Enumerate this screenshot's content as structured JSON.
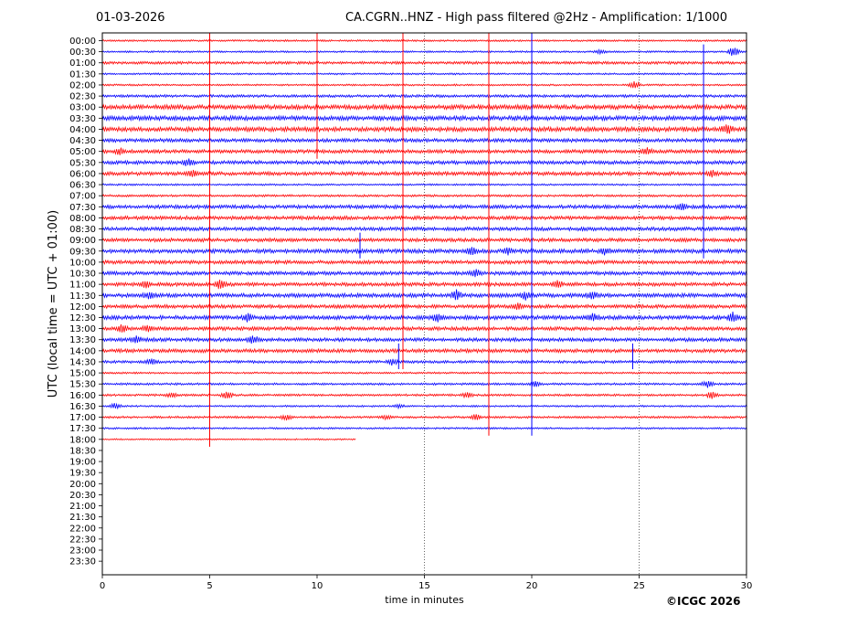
{
  "header": {
    "date": "01-03-2026",
    "title": "CA.CGRN..HNZ - High pass filtered @2Hz - Amplification: 1/1000"
  },
  "footer": {
    "credit": "©ICGC 2026"
  },
  "colors": {
    "trace_red": "#ff0000",
    "trace_blue": "#0000ff",
    "axis": "#000000"
  },
  "chart_data": {
    "type": "line",
    "xlabel": "time in minutes",
    "ylabel": "UTC (local time = UTC + 01:00)",
    "xlim": [
      0,
      30
    ],
    "xticks": [
      "0",
      "5",
      "10",
      "15",
      "20",
      "25",
      "30"
    ],
    "dotted_gridlines_x": [
      15,
      25
    ],
    "rows": [
      "00:00",
      "00:30",
      "01:00",
      "01:30",
      "02:00",
      "02:30",
      "03:00",
      "03:30",
      "04:00",
      "04:30",
      "05:00",
      "05:30",
      "06:00",
      "06:30",
      "07:00",
      "07:30",
      "08:00",
      "08:30",
      "09:00",
      "09:30",
      "10:00",
      "10:30",
      "11:00",
      "11:30",
      "12:00",
      "12:30",
      "13:00",
      "13:30",
      "14:00",
      "14:30",
      "15:00",
      "15:30",
      "16:00",
      "16:30",
      "17:00",
      "17:30",
      "18:00",
      "18:30",
      "19:00",
      "19:30",
      "20:00",
      "20:30",
      "21:00",
      "21:30",
      "22:00",
      "22:30",
      "23:00",
      "23:30"
    ],
    "trace_colors": [
      "red",
      "blue"
    ],
    "recorded_rows": 37,
    "last_row_end_minute": 11.8,
    "trace_style": [
      {
        "row": "00:00",
        "base": 1
      },
      {
        "row": "00:30",
        "base": 1
      },
      {
        "row": "01:00",
        "base": 1.5
      },
      {
        "row": "01:30",
        "base": 1
      },
      {
        "row": "02:00",
        "base": 1
      },
      {
        "row": "02:30",
        "base": 1.5
      },
      {
        "row": "03:00",
        "base": 2.5
      },
      {
        "row": "03:30",
        "base": 2.5
      },
      {
        "row": "04:00",
        "base": 2.5
      },
      {
        "row": "04:30",
        "base": 2
      },
      {
        "row": "05:00",
        "base": 2
      },
      {
        "row": "05:30",
        "base": 2
      },
      {
        "row": "06:00",
        "base": 2
      },
      {
        "row": "06:30",
        "base": 1
      },
      {
        "row": "07:00",
        "base": 1.2
      },
      {
        "row": "07:30",
        "base": 2
      },
      {
        "row": "08:00",
        "base": 2
      },
      {
        "row": "08:30",
        "base": 2
      },
      {
        "row": "09:00",
        "base": 2
      },
      {
        "row": "09:30",
        "base": 2.2
      },
      {
        "row": "10:00",
        "base": 2
      },
      {
        "row": "10:30",
        "base": 2
      },
      {
        "row": "11:00",
        "base": 2
      },
      {
        "row": "11:30",
        "base": 2.2
      },
      {
        "row": "12:00",
        "base": 2
      },
      {
        "row": "12:30",
        "base": 2.2
      },
      {
        "row": "13:00",
        "base": 2
      },
      {
        "row": "13:30",
        "base": 2
      },
      {
        "row": "14:00",
        "base": 2
      },
      {
        "row": "14:30",
        "base": 1.5
      },
      {
        "row": "15:00",
        "base": 1
      },
      {
        "row": "15:30",
        "base": 1.2
      },
      {
        "row": "16:00",
        "base": 1.2
      },
      {
        "row": "16:30",
        "base": 1
      },
      {
        "row": "17:00",
        "base": 1.2
      },
      {
        "row": "17:30",
        "base": 1
      },
      {
        "row": "18:00",
        "base": 0.8
      }
    ],
    "spikes": [
      {
        "x": 5.0,
        "row_from": "00:00",
        "row_to": "18:00",
        "color": "red"
      },
      {
        "x": 10.0,
        "row_from": "00:00",
        "row_to": "05:00",
        "color": "red"
      },
      {
        "x": 14.0,
        "row_from": "00:00",
        "row_to": "14:30",
        "color": "red"
      },
      {
        "x": 18.0,
        "row_from": "00:00",
        "row_to": "17:30",
        "color": "red"
      },
      {
        "x": 20.0,
        "row_from": "00:00",
        "row_to": "17:30",
        "color": "blue"
      },
      {
        "x": 28.0,
        "row_from": "00:30",
        "row_to": "09:30",
        "color": "blue"
      },
      {
        "x": 12.0,
        "row_from": "09:00",
        "row_to": "09:30",
        "color": "blue"
      },
      {
        "x": 24.7,
        "row_from": "14:00",
        "row_to": "14:30",
        "color": "blue"
      },
      {
        "x": 13.8,
        "row_from": "14:00",
        "row_to": "14:30",
        "color": "blue"
      }
    ],
    "bursts": [
      {
        "row": "00:30",
        "x": 29.4,
        "amp": 5
      },
      {
        "row": "00:30",
        "x": 23.2,
        "amp": 2
      },
      {
        "row": "02:00",
        "x": 24.8,
        "amp": 4
      },
      {
        "row": "04:00",
        "x": 29.1,
        "amp": 4
      },
      {
        "row": "05:00",
        "x": 0.8,
        "amp": 3
      },
      {
        "row": "05:00",
        "x": 25.4,
        "amp": 3
      },
      {
        "row": "05:30",
        "x": 4.0,
        "amp": 4
      },
      {
        "row": "06:00",
        "x": 28.4,
        "amp": 3
      },
      {
        "row": "06:00",
        "x": 4.2,
        "amp": 3
      },
      {
        "row": "07:30",
        "x": 27.0,
        "amp": 3
      },
      {
        "row": "09:30",
        "x": 17.2,
        "amp": 4
      },
      {
        "row": "09:30",
        "x": 18.9,
        "amp": 3
      },
      {
        "row": "09:30",
        "x": 23.4,
        "amp": 3
      },
      {
        "row": "10:30",
        "x": 17.4,
        "amp": 4
      },
      {
        "row": "11:00",
        "x": 5.5,
        "amp": 5
      },
      {
        "row": "11:00",
        "x": 2.0,
        "amp": 3
      },
      {
        "row": "11:00",
        "x": 21.2,
        "amp": 3
      },
      {
        "row": "11:30",
        "x": 16.5,
        "amp": 5
      },
      {
        "row": "11:30",
        "x": 19.7,
        "amp": 4
      },
      {
        "row": "11:30",
        "x": 22.8,
        "amp": 3
      },
      {
        "row": "11:30",
        "x": 2.2,
        "amp": 3
      },
      {
        "row": "12:00",
        "x": 19.4,
        "amp": 3
      },
      {
        "row": "12:30",
        "x": 29.4,
        "amp": 5
      },
      {
        "row": "12:30",
        "x": 6.8,
        "amp": 4
      },
      {
        "row": "12:30",
        "x": 15.6,
        "amp": 4
      },
      {
        "row": "12:30",
        "x": 22.8,
        "amp": 4
      },
      {
        "row": "13:00",
        "x": 0.9,
        "amp": 4
      },
      {
        "row": "13:00",
        "x": 2.1,
        "amp": 3
      },
      {
        "row": "13:30",
        "x": 7.0,
        "amp": 4
      },
      {
        "row": "13:30",
        "x": 1.6,
        "amp": 3
      },
      {
        "row": "14:30",
        "x": 2.3,
        "amp": 3
      },
      {
        "row": "14:30",
        "x": 13.5,
        "amp": 3
      },
      {
        "row": "15:30",
        "x": 28.2,
        "amp": 4
      },
      {
        "row": "15:30",
        "x": 20.2,
        "amp": 3
      },
      {
        "row": "16:00",
        "x": 5.8,
        "amp": 4
      },
      {
        "row": "16:00",
        "x": 17.0,
        "amp": 3
      },
      {
        "row": "16:00",
        "x": 28.4,
        "amp": 4
      },
      {
        "row": "16:00",
        "x": 3.2,
        "amp": 3
      },
      {
        "row": "16:30",
        "x": 0.6,
        "amp": 3
      },
      {
        "row": "16:30",
        "x": 13.8,
        "amp": 2
      },
      {
        "row": "17:00",
        "x": 8.6,
        "amp": 3
      },
      {
        "row": "17:00",
        "x": 17.4,
        "amp": 3
      },
      {
        "row": "17:00",
        "x": 13.2,
        "amp": 2
      }
    ]
  }
}
